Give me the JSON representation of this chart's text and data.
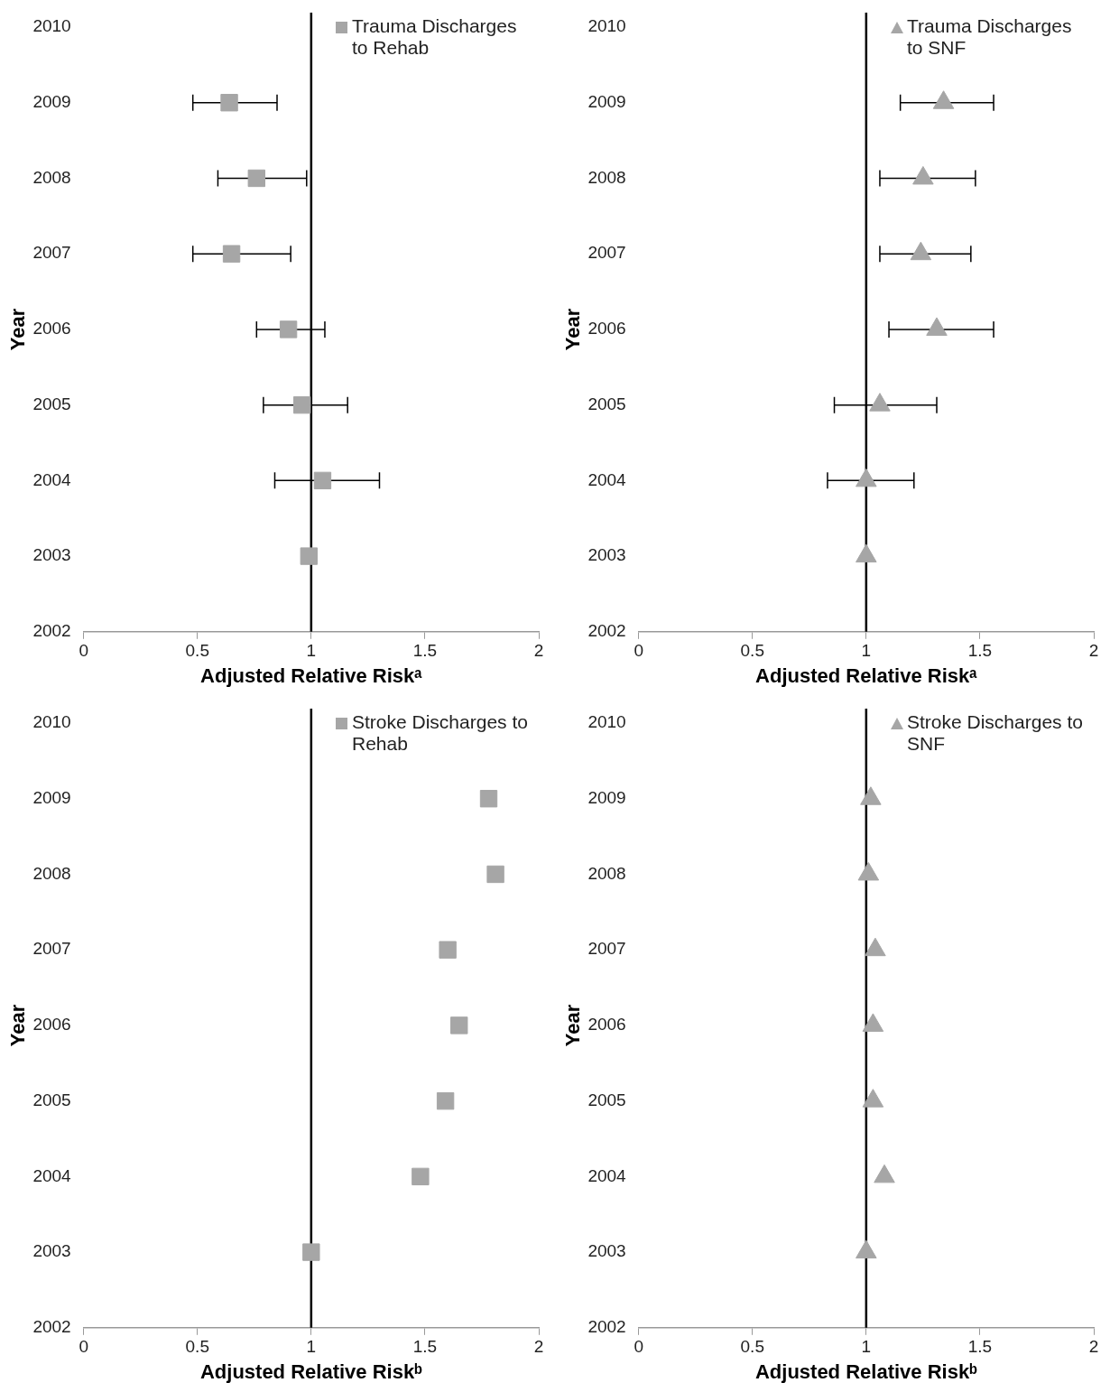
{
  "chart_data": [
    {
      "type": "scatter",
      "xlabel": "Adjusted Relative Riskᵃ",
      "ylabel": "Year",
      "marker": "square",
      "legend": "top right",
      "grid": false,
      "xlim": [
        0,
        2
      ],
      "xticks": [
        0,
        0.5,
        1,
        1.5,
        2
      ],
      "ylim": [
        2002,
        2010
      ],
      "yticks": [
        2002,
        2003,
        2004,
        2005,
        2006,
        2007,
        2008,
        2009,
        2010
      ],
      "ref_lines": [
        {
          "axis": "x",
          "value": 1,
          "color": "#000000"
        }
      ],
      "series": [
        {
          "name": "Trauma Discharges to Rehab",
          "color": "#a6a6a6",
          "x": [
            0.64,
            0.76,
            0.65,
            0.9,
            0.96,
            1.05,
            0.99
          ],
          "values": [
            2009,
            2008,
            2007,
            2006,
            2005,
            2004,
            2003
          ],
          "xerrors": [
            [
              0.48,
              0.85
            ],
            [
              0.59,
              0.98
            ],
            [
              0.48,
              0.91
            ],
            [
              0.76,
              1.06
            ],
            [
              0.79,
              1.16
            ],
            [
              0.84,
              1.3
            ],
            null
          ]
        }
      ]
    },
    {
      "type": "scatter",
      "xlabel": "Adjusted Relative Riskᵃ",
      "ylabel": "Year",
      "marker": "triangle",
      "legend": "top right",
      "grid": false,
      "xlim": [
        0,
        2
      ],
      "xticks": [
        0,
        0.5,
        1,
        1.5,
        2
      ],
      "ylim": [
        2002,
        2010
      ],
      "yticks": [
        2002,
        2003,
        2004,
        2005,
        2006,
        2007,
        2008,
        2009,
        2010
      ],
      "ref_lines": [
        {
          "axis": "x",
          "value": 1,
          "color": "#000000"
        }
      ],
      "series": [
        {
          "name": "Trauma Discharges to SNF",
          "color": "#a6a6a6",
          "x": [
            1.34,
            1.25,
            1.24,
            1.31,
            1.06,
            1.0,
            1.0
          ],
          "values": [
            2009,
            2008,
            2007,
            2006,
            2005,
            2004,
            2003
          ],
          "xerrors": [
            [
              1.15,
              1.56
            ],
            [
              1.06,
              1.48
            ],
            [
              1.06,
              1.46
            ],
            [
              1.1,
              1.56
            ],
            [
              0.86,
              1.31
            ],
            [
              0.83,
              1.21
            ],
            null
          ]
        }
      ]
    },
    {
      "type": "scatter",
      "xlabel": "Adjusted Relative Riskᵇ",
      "ylabel": "Year",
      "marker": "square",
      "legend": "top right",
      "grid": false,
      "xlim": [
        0,
        2
      ],
      "xticks": [
        0,
        0.5,
        1,
        1.5,
        2
      ],
      "ylim": [
        2002,
        2010
      ],
      "yticks": [
        2002,
        2003,
        2004,
        2005,
        2006,
        2007,
        2008,
        2009,
        2010
      ],
      "ref_lines": [
        {
          "axis": "x",
          "value": 1,
          "color": "#000000"
        }
      ],
      "series": [
        {
          "name": "Stroke Discharges to Rehab",
          "color": "#a6a6a6",
          "x": [
            1.78,
            1.81,
            1.6,
            1.65,
            1.59,
            1.48,
            1.0
          ],
          "values": [
            2009,
            2008,
            2007,
            2006,
            2005,
            2004,
            2003
          ]
        }
      ]
    },
    {
      "type": "scatter",
      "xlabel": "Adjusted Relative Riskᵇ",
      "ylabel": "Year",
      "marker": "triangle",
      "legend": "top right",
      "grid": false,
      "xlim": [
        0,
        2
      ],
      "xticks": [
        0,
        0.5,
        1,
        1.5,
        2
      ],
      "ylim": [
        2002,
        2010
      ],
      "yticks": [
        2002,
        2003,
        2004,
        2005,
        2006,
        2007,
        2008,
        2009,
        2010
      ],
      "ref_lines": [
        {
          "axis": "x",
          "value": 1,
          "color": "#000000"
        }
      ],
      "series": [
        {
          "name": "Stroke Discharges to SNF",
          "color": "#a6a6a6",
          "x": [
            1.02,
            1.01,
            1.04,
            1.03,
            1.03,
            1.08,
            1.0
          ],
          "values": [
            2009,
            2008,
            2007,
            2006,
            2005,
            2004,
            2003
          ]
        }
      ]
    }
  ]
}
